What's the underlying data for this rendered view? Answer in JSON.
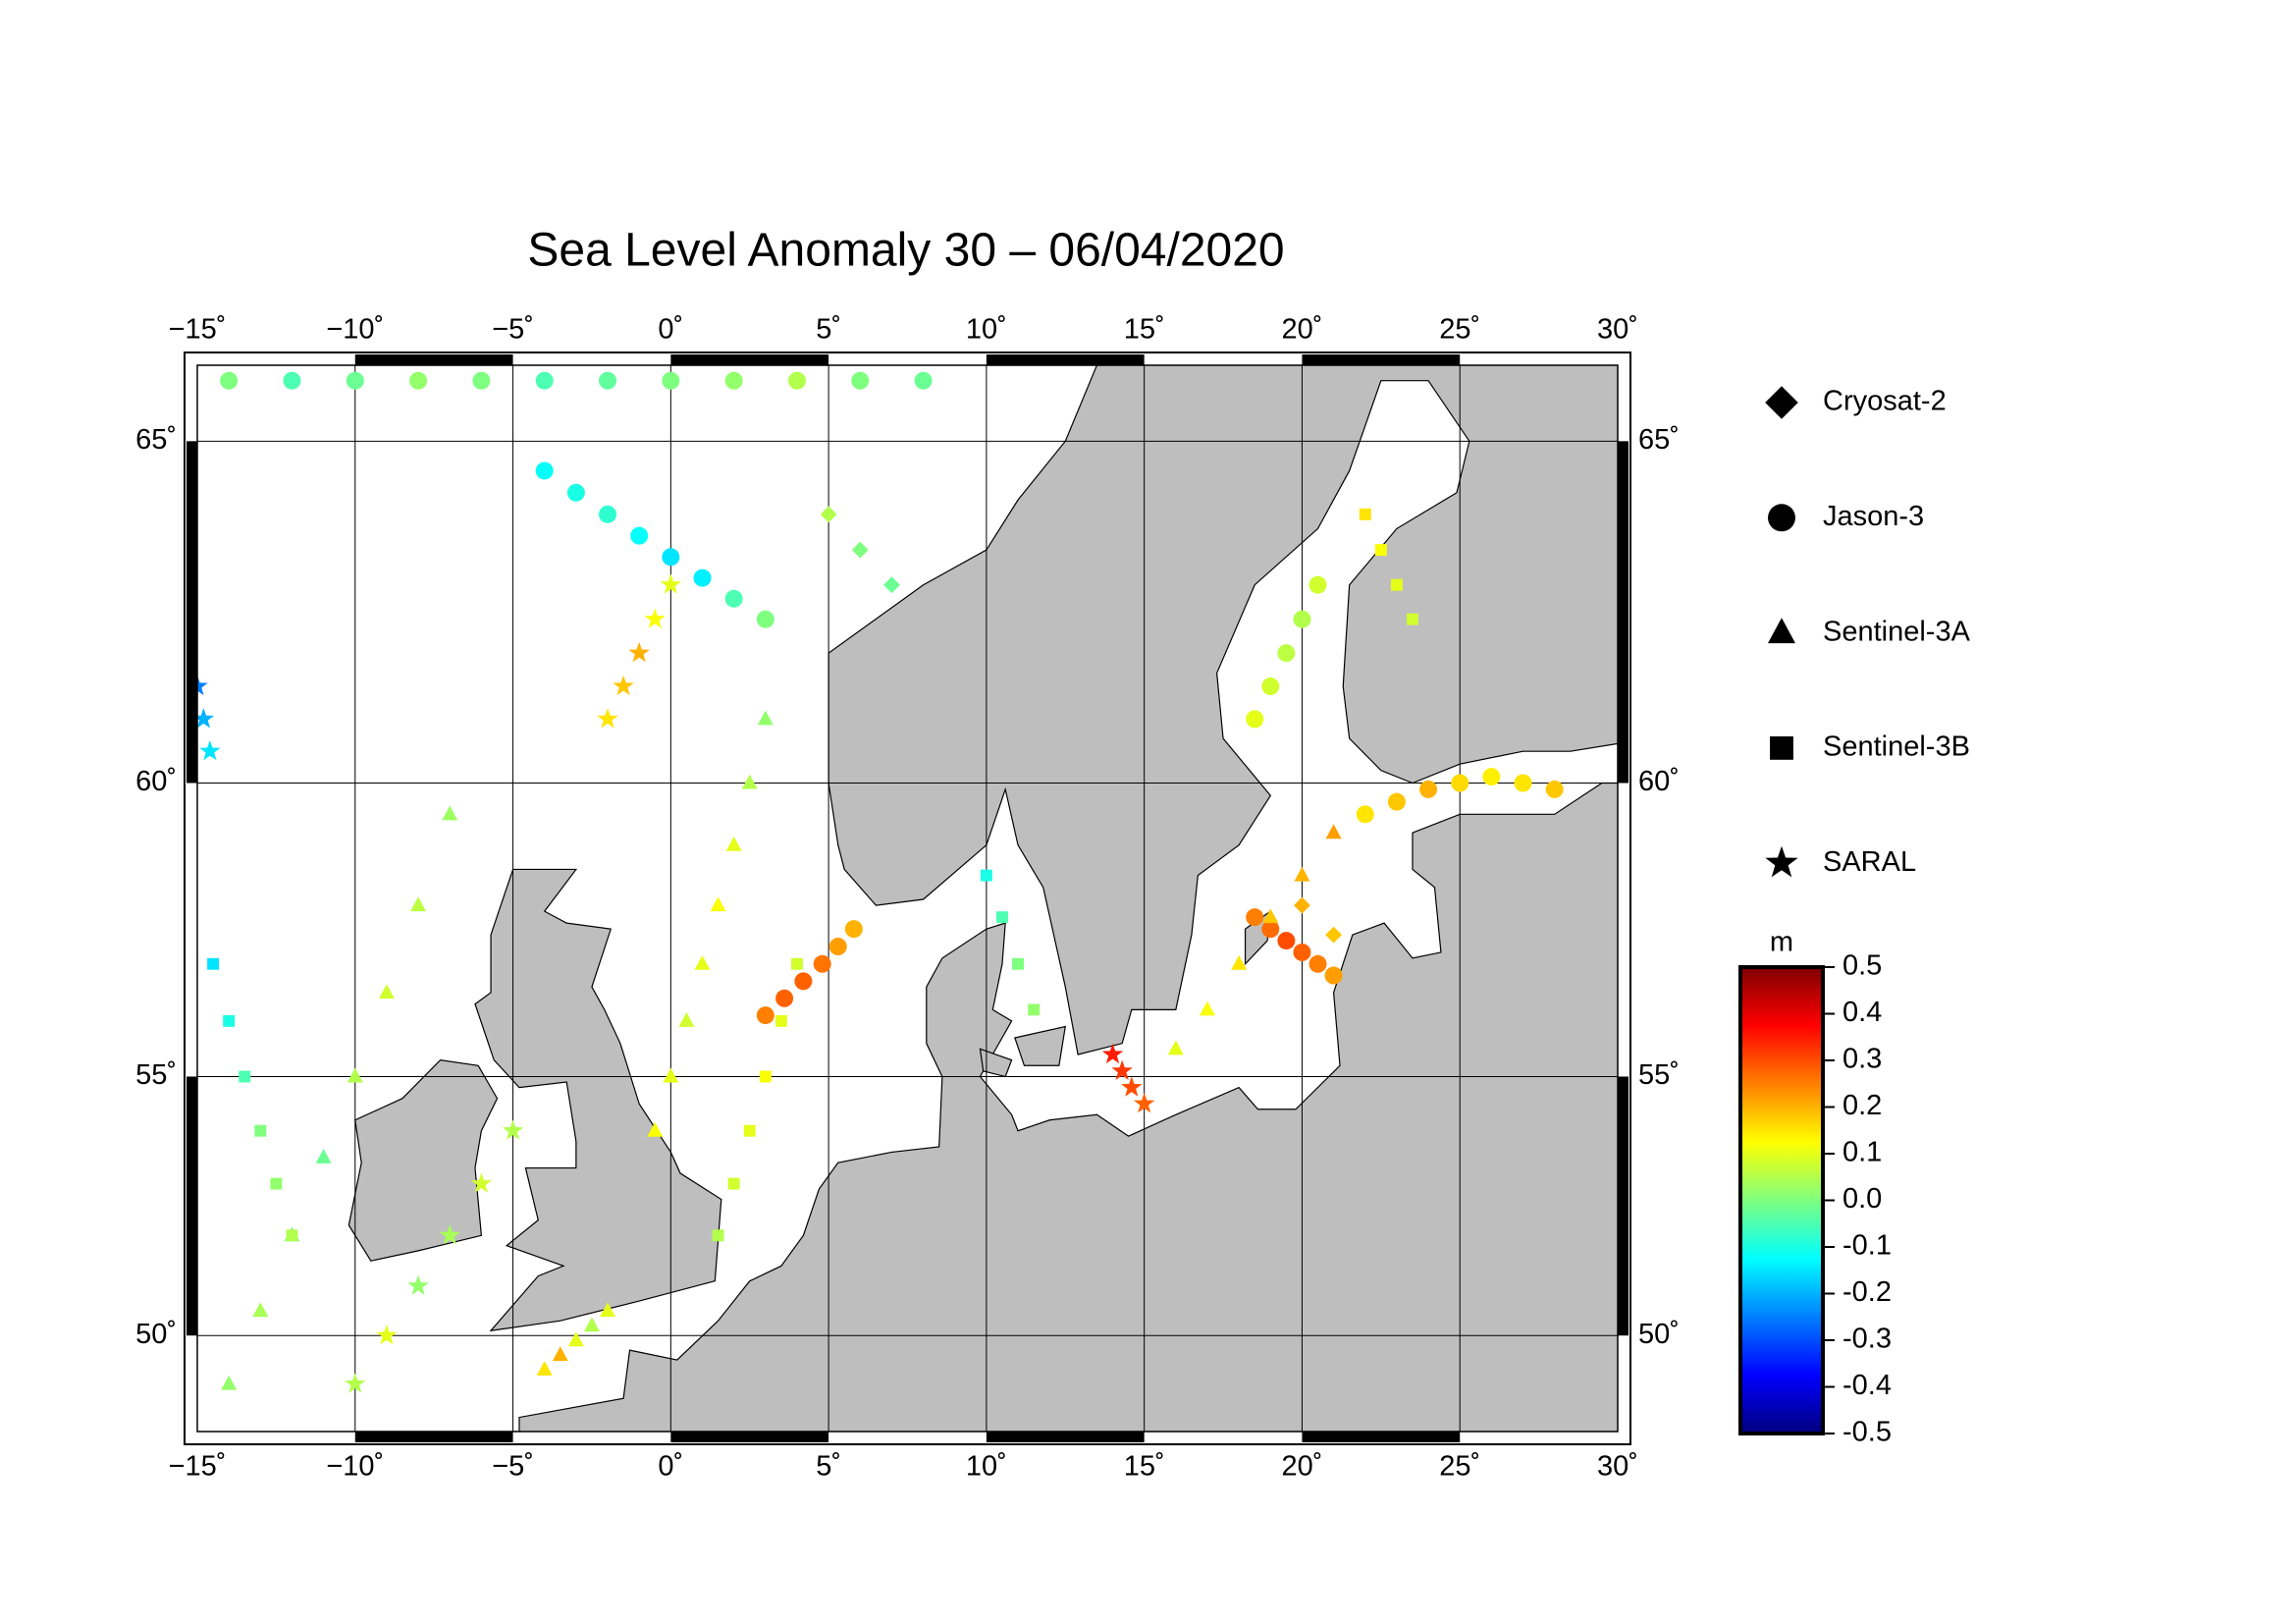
{
  "chart_data": {
    "type": "map",
    "title": "Sea Level Anomaly 30 – 06/04/2020",
    "xlim": [
      -15,
      30
    ],
    "ylim": [
      48.0,
      66.0
    ],
    "xticks": [
      {
        "value": -15,
        "label": "−15˚"
      },
      {
        "value": -10,
        "label": "−10˚"
      },
      {
        "value": -5,
        "label": "−5˚"
      },
      {
        "value": 0,
        "label": "0˚"
      },
      {
        "value": 5,
        "label": "5˚"
      },
      {
        "value": 10,
        "label": "10˚"
      },
      {
        "value": 15,
        "label": "15˚"
      },
      {
        "value": 20,
        "label": "20˚"
      },
      {
        "value": 25,
        "label": "25˚"
      },
      {
        "value": 30,
        "label": "30˚"
      }
    ],
    "yticks": [
      {
        "value": 50,
        "label": "50˚"
      },
      {
        "value": 55,
        "label": "55˚"
      },
      {
        "value": 60,
        "label": "60˚"
      },
      {
        "value": 65,
        "label": "65˚"
      }
    ],
    "grid": true,
    "land_color": "#bebebe",
    "colorbar": {
      "label": "m",
      "clim": [
        -0.5,
        0.5
      ],
      "colormap": [
        "#00007f",
        "#0000ff",
        "#007fff",
        "#00ffff",
        "#7fff7f",
        "#ffff00",
        "#ff7f00",
        "#ff0000",
        "#7f0000"
      ],
      "ticks": [
        0.5,
        0.4,
        0.3,
        0.2,
        0.1,
        {
          "value": 0,
          "label": "0.0"
        },
        -0.1,
        -0.2,
        -0.3,
        -0.4,
        -0.5
      ]
    },
    "series": [
      {
        "name": "Cryosat-2",
        "marker": "diamond",
        "lon": [
          5,
          6,
          7,
          20,
          21
        ],
        "lat": [
          64,
          63.5,
          63,
          58,
          57.5
        ],
        "values": [
          0.05,
          0.0,
          -0.02,
          0.2,
          0.18
        ]
      },
      {
        "name": "Jason-3",
        "marker": "circle",
        "lon": [
          3.0,
          3.6,
          4.2,
          4.8,
          5.3,
          5.8,
          -4,
          -3,
          -2,
          -1,
          0,
          1,
          2,
          3,
          -14,
          -12,
          -10,
          -8,
          -6,
          -4,
          -2,
          0,
          2,
          4,
          6,
          8,
          18.5,
          19,
          19.5,
          20,
          20.5,
          21,
          18.5,
          19,
          19.5,
          20,
          20.5,
          22,
          23,
          24,
          25,
          26,
          27,
          28
        ],
        "lat": [
          56.1,
          56.4,
          56.7,
          57.0,
          57.3,
          57.6,
          64.6,
          64.3,
          64.0,
          63.7,
          63.4,
          63.1,
          62.8,
          62.5,
          65.8,
          65.8,
          65.8,
          65.8,
          65.8,
          65.8,
          65.8,
          65.8,
          65.8,
          65.8,
          65.8,
          65.8,
          57.8,
          57.6,
          57.4,
          57.2,
          57.0,
          56.8,
          61,
          61.5,
          62,
          62.5,
          63,
          59.5,
          59.7,
          59.9,
          60.0,
          60.1,
          60.0,
          59.9
        ],
        "values": [
          0.25,
          0.28,
          0.28,
          0.26,
          0.22,
          0.2,
          -0.12,
          -0.1,
          -0.08,
          -0.12,
          -0.15,
          -0.14,
          -0.05,
          0.0,
          0,
          -0.05,
          -0.02,
          0.02,
          0,
          -0.05,
          -0.03,
          0,
          0.02,
          0.05,
          0,
          -0.02,
          0.25,
          0.27,
          0.3,
          0.28,
          0.25,
          0.22,
          0.1,
          0.08,
          0.06,
          0.05,
          0.08,
          0.15,
          0.18,
          0.2,
          0.16,
          0.14,
          0.15,
          0.18
        ]
      },
      {
        "name": "Sentinel-3A",
        "marker": "triangle",
        "lon": [
          -0.5,
          0,
          0.5,
          1,
          1.5,
          2,
          2.5,
          3,
          -14,
          -13,
          -12,
          -11,
          -10,
          -9,
          -8,
          -7,
          16,
          17,
          18,
          19,
          20,
          21,
          -4,
          -3.5,
          -3,
          -2.5,
          -2
        ],
        "lat": [
          54,
          55,
          56,
          57,
          58,
          59,
          60,
          61,
          49,
          50.5,
          52,
          53.5,
          55,
          56.5,
          58,
          59.5,
          55.5,
          56.2,
          57,
          57.8,
          58.5,
          59.2,
          49.3,
          49.6,
          49.9,
          50.2,
          50.5
        ],
        "values": [
          0.12,
          0.1,
          0.08,
          0.1,
          0.12,
          0.1,
          0.05,
          0.02,
          0.02,
          0.04,
          0.0,
          -0.02,
          0.05,
          0.08,
          0.06,
          0.03,
          0.1,
          0.12,
          0.15,
          0.18,
          0.2,
          0.22,
          0.15,
          0.2,
          0.1,
          0.05,
          0.1
        ]
      },
      {
        "name": "Sentinel-3B",
        "marker": "square",
        "lon": [
          -14.5,
          -14,
          -13.5,
          -13,
          -12.5,
          -12,
          10,
          10.5,
          11,
          11.5,
          1.5,
          2,
          2.5,
          3,
          3.5,
          4,
          22,
          22.5,
          23,
          23.5
        ],
        "lat": [
          57,
          56,
          55,
          54,
          53,
          52,
          58.5,
          57.8,
          57,
          56.2,
          52,
          53,
          54,
          55,
          56,
          57,
          64,
          63.5,
          63,
          62.5
        ],
        "values": [
          -0.15,
          -0.1,
          -0.05,
          0,
          0.02,
          0.05,
          -0.1,
          -0.05,
          0,
          0.02,
          0.05,
          0.08,
          0.1,
          0.12,
          0.1,
          0.08,
          0.15,
          0.12,
          0.1,
          0.08
        ]
      },
      {
        "name": "SARAL",
        "marker": "star",
        "lon": [
          -10,
          -9,
          -8,
          -7,
          -6,
          -5,
          14,
          14.3,
          14.6,
          15,
          -2,
          -1.5,
          -1,
          -0.5,
          0,
          -15,
          -14.8,
          -14.6
        ],
        "lat": [
          49,
          50,
          51,
          52,
          53,
          54,
          55.4,
          55.1,
          54.8,
          54.5,
          61,
          61.5,
          62,
          62.5,
          63,
          61.5,
          61,
          60.5
        ],
        "values": [
          0.05,
          0.1,
          0.02,
          0.04,
          0.08,
          0.05,
          0.35,
          0.32,
          0.3,
          0.28,
          0.15,
          0.18,
          0.2,
          0.12,
          0.1,
          -0.25,
          -0.2,
          -0.15
        ]
      }
    ]
  }
}
